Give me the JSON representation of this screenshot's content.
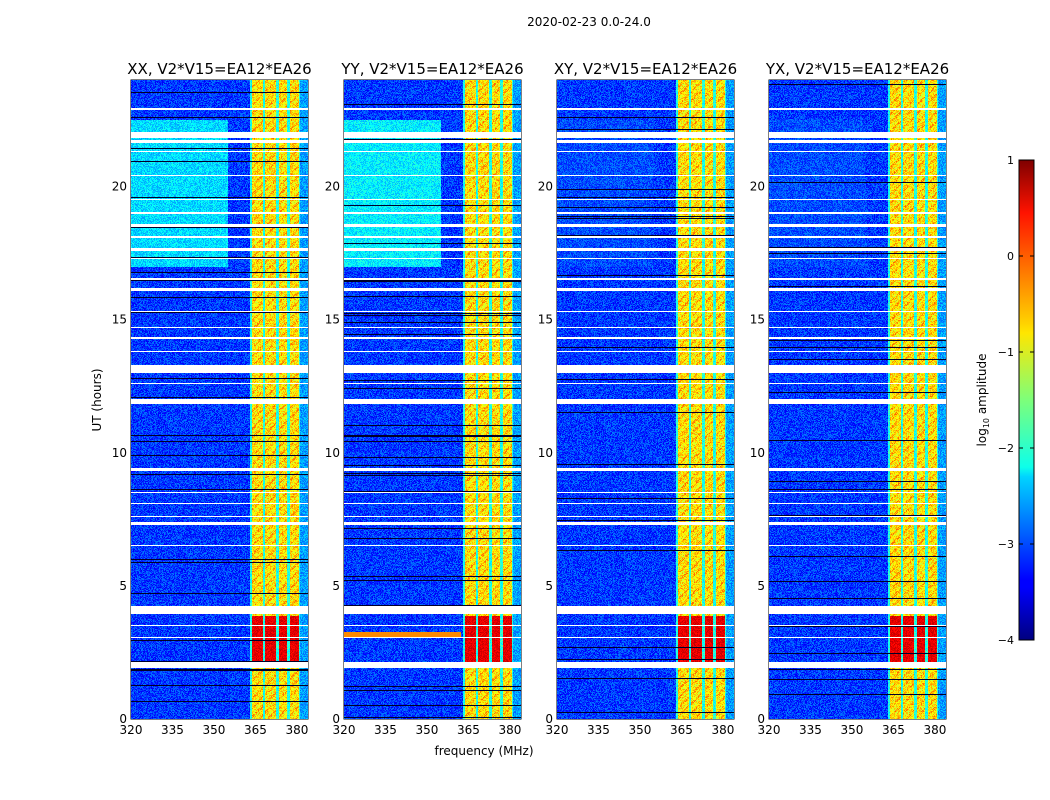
{
  "chart_data": {
    "type": "heatmap",
    "suptitle": "2020-02-23 0.0-24.0",
    "xlabel": "frequency (MHz)",
    "ylabel": "UT (hours)",
    "xlim": [
      320,
      384
    ],
    "ylim": [
      0,
      24
    ],
    "xticks": [
      "320",
      "335",
      "350",
      "365",
      "380"
    ],
    "yticks": [
      "0",
      "5",
      "10",
      "15",
      "20"
    ],
    "panels": [
      {
        "title": "XX, V2*V15=EA12*EA26",
        "upper_band_level": -2.3
      },
      {
        "title": "YY, V2*V15=EA12*EA26",
        "upper_band_level": -2.2
      },
      {
        "title": "XY, V2*V15=EA12*EA26",
        "upper_band_level": -3.0
      },
      {
        "title": "YX, V2*V15=EA12*EA26",
        "upper_band_level": -3.0
      }
    ],
    "background_level": -3.1,
    "rfi_channels_mhz": [
      [
        363.5,
        367.5
      ],
      [
        368.3,
        372.3
      ],
      [
        373.2,
        376.3
      ],
      [
        377.2,
        380.5
      ]
    ],
    "rfi_level": -0.8,
    "strong_rfi_hours": [
      2.1,
      3.9
    ],
    "strong_rfi_level": 0.5,
    "flagged_hours": [
      [
        1.95,
        2.15
      ],
      [
        3.05,
        3.1
      ],
      [
        3.5,
        3.55
      ],
      [
        3.95,
        4.25
      ],
      [
        6.5,
        6.55
      ],
      [
        7.3,
        7.4
      ],
      [
        7.6,
        7.65
      ],
      [
        8.1,
        8.15
      ],
      [
        8.5,
        8.55
      ],
      [
        9.35,
        9.45
      ],
      [
        11.85,
        12.05
      ],
      [
        12.6,
        12.65
      ],
      [
        13.0,
        13.3
      ],
      [
        13.8,
        13.85
      ],
      [
        14.3,
        14.35
      ],
      [
        14.7,
        14.75
      ],
      [
        15.3,
        15.35
      ],
      [
        16.1,
        16.2
      ],
      [
        16.5,
        16.6
      ],
      [
        17.3,
        17.35
      ],
      [
        17.6,
        17.7
      ],
      [
        18.1,
        18.15
      ],
      [
        18.5,
        18.6
      ],
      [
        19.0,
        19.05
      ],
      [
        19.5,
        19.55
      ],
      [
        20.4,
        20.45
      ],
      [
        21.3,
        21.35
      ],
      [
        21.65,
        21.75
      ],
      [
        21.85,
        22.05
      ],
      [
        22.9,
        22.95
      ]
    ],
    "colorbar": {
      "label_prefix": "log",
      "label_sub": "10",
      "label_suffix": " amplitude",
      "range": [
        -4,
        1
      ],
      "ticks": [
        "1",
        "0",
        "−1",
        "−2",
        "−3",
        "−4"
      ],
      "colormap": "jet"
    }
  }
}
